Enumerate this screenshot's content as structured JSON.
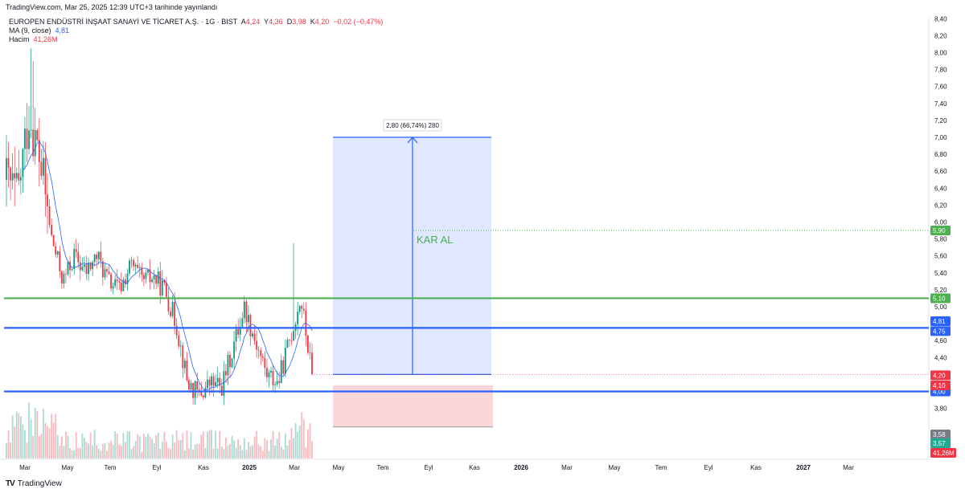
{
  "publish_line": "TradingView.com, Mar 25, 2025 12:39 UTC+3 tarihinde yayınlandı",
  "legend": {
    "symbol": "EUROPEN ENDÜSTRİ İNŞAAT SANAYİ VE TİCARET A.Ş. · 1G · BIST",
    "o_label": "A",
    "o": "4,24",
    "h_label": "Y",
    "h": "4,36",
    "l_label": "D",
    "l": "3,98",
    "c_label": "K",
    "c": "4,20",
    "change": "−0,02 (−0,47%)",
    "ma_label": "MA (9, close)",
    "ma_value": "4,81",
    "vol_label": "Hacim",
    "vol_value": "41,26M"
  },
  "brand": "TradingView",
  "colors": {
    "up": "#089981",
    "down": "#f23645",
    "ma": "#2962ff",
    "green_line": "#4caf50",
    "blue_line": "#2962ff",
    "target_fill": "rgba(41,98,255,0.15)",
    "stop_fill": "rgba(242,54,69,0.2)"
  },
  "chart_data": {
    "type": "candlestick",
    "y_axis": {
      "range": [
        3.6,
        8.5
      ],
      "tick_labels": [
        "3,80",
        "4,00",
        "4,20",
        "4,40",
        "4,60",
        "4,80",
        "5,00",
        "5,20",
        "5,40",
        "5,60",
        "5,80",
        "6,00",
        "6,20",
        "6,40",
        "6,60",
        "6,80",
        "7,00",
        "7,20",
        "7,40",
        "7,60",
        "7,80",
        "8,00",
        "8,20",
        "8,40"
      ]
    },
    "x_axis": {
      "tick_labels": [
        "Mar",
        "May",
        "Tem",
        "Eyl",
        "Kas",
        "2025",
        "Mar",
        "May",
        "Tem",
        "Eyl",
        "Kas",
        "2026",
        "Mar",
        "May",
        "Tem",
        "Eyl",
        "Kas",
        "2027",
        "Mar"
      ],
      "bold_labels": [
        "2025",
        "2026",
        "2027"
      ]
    },
    "price_path": [
      {
        "t": "Mar 2024",
        "v": 6.5
      },
      {
        "t": "Mar 2024",
        "v": 6.3
      },
      {
        "t": "Mar 2024",
        "v": 7.3
      },
      {
        "t": "Apr 2024",
        "v": 6.7
      },
      {
        "t": "Apr 2024",
        "v": 5.8
      },
      {
        "t": "Apr 2024",
        "v": 5.3
      },
      {
        "t": "May 2024",
        "v": 5.6
      },
      {
        "t": "May 2024",
        "v": 5.4
      },
      {
        "t": "Jun 2024",
        "v": 5.6
      },
      {
        "t": "Jun 2024",
        "v": 5.3
      },
      {
        "t": "Jul 2024",
        "v": 5.2
      },
      {
        "t": "Jul 2024",
        "v": 5.5
      },
      {
        "t": "Aug 2024",
        "v": 5.3
      },
      {
        "t": "Aug 2024",
        "v": 5.35
      },
      {
        "t": "Sep 2024",
        "v": 5.2
      },
      {
        "t": "Sep 2024",
        "v": 4.8
      },
      {
        "t": "Oct 2024",
        "v": 4.1
      },
      {
        "t": "Oct 2024",
        "v": 3.95
      },
      {
        "t": "Nov 2024",
        "v": 4.1
      },
      {
        "t": "Nov 2024",
        "v": 4.05
      },
      {
        "t": "Dec 2024",
        "v": 4.5
      },
      {
        "t": "Jan 2025",
        "v": 5.0
      },
      {
        "t": "Jan 2025",
        "v": 4.6
      },
      {
        "t": "Feb 2025",
        "v": 4.2
      },
      {
        "t": "Feb 2025",
        "v": 4.1
      },
      {
        "t": "Mar 2025",
        "v": 4.6
      },
      {
        "t": "Mar 2025",
        "v": 5.1
      },
      {
        "t": "Mar 2025",
        "v": 4.2
      }
    ],
    "ma_period": 9,
    "horizontal_lines": [
      {
        "value": 5.1,
        "label": "5,10",
        "color": "green"
      },
      {
        "value": 4.75,
        "label": "4,75",
        "color": "blue"
      },
      {
        "value": 4.0,
        "label": "4,00",
        "color": "blue"
      }
    ],
    "dotted_level": {
      "value": 5.9,
      "label": "5,90"
    },
    "long_position": {
      "entry": 4.2,
      "target": 7.0,
      "stop": 3.58,
      "range_label": "2,80 (66,74%) 280",
      "annotation": "KAR AL"
    },
    "price_tags": [
      {
        "label": "4,81",
        "color": "blue"
      },
      {
        "label": "4,20",
        "color": "red"
      },
      {
        "label": "4,10",
        "color": "red"
      },
      {
        "label": "3,58",
        "color": "gray"
      },
      {
        "label": "3,57",
        "color": "teal"
      },
      {
        "label": "41,26M",
        "color": "red"
      }
    ]
  }
}
